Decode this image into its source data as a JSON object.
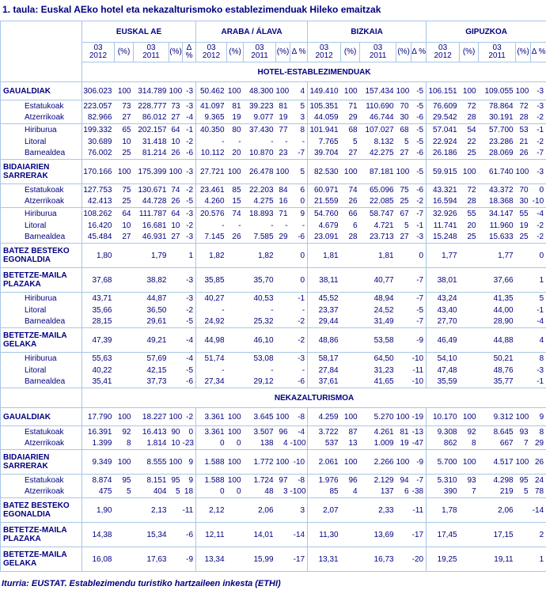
{
  "title": "1. taula: Euskal AEko hotel eta nekazalturismoko establezimenduak Hileko emaitzak",
  "footer": "Iturria: EUSTAT. Establezimendu turistiko hartzaileen inkesta (ETHI)",
  "colors": {
    "text_navy": "#000080",
    "border_blue": "#a8c6e6",
    "background": "#ffffff"
  },
  "table": {
    "groups": [
      "EUSKAL AE",
      "ARABA / ÁLAVA",
      "BIZKAIA",
      "GIPUZKOA"
    ],
    "subheaders": [
      "03\n2012",
      "(%)",
      "03\n2011",
      "(%)",
      "Δ %"
    ],
    "sections": [
      {
        "name": "HOTEL-ESTABLEZIMENDUAK",
        "rows": [
          {
            "label": "GAUALDIAK",
            "type": "head",
            "tall": false,
            "end": true,
            "cells": [
              "306.023",
              "100",
              "314.789",
              "100",
              "-3",
              "50.462",
              "100",
              "48.300",
              "100",
              "4",
              "149.410",
              "100",
              "157.434",
              "100",
              "-5",
              "106.151",
              "100",
              "109.055",
              "100",
              "-3"
            ]
          },
          {
            "label": "Estatukoak",
            "type": "sub",
            "end": false,
            "cells": [
              "223.057",
              "73",
              "228.777",
              "73",
              "-3",
              "41.097",
              "81",
              "39.223",
              "81",
              "5",
              "105.351",
              "71",
              "110.690",
              "70",
              "-5",
              "76.609",
              "72",
              "78.864",
              "72",
              "-3"
            ]
          },
          {
            "label": "Atzerrikoak",
            "type": "sub",
            "end": true,
            "cells": [
              "82.966",
              "27",
              "86.012",
              "27",
              "-4",
              "9.365",
              "19",
              "9.077",
              "19",
              "3",
              "44.059",
              "29",
              "46.744",
              "30",
              "-6",
              "29.542",
              "28",
              "30.191",
              "28",
              "-2"
            ]
          },
          {
            "label": "Hiriburua",
            "type": "sub",
            "end": false,
            "cells": [
              "199.332",
              "65",
              "202.157",
              "64",
              "-1",
              "40.350",
              "80",
              "37.430",
              "77",
              "8",
              "101.941",
              "68",
              "107.027",
              "68",
              "-5",
              "57.041",
              "54",
              "57.700",
              "53",
              "-1"
            ]
          },
          {
            "label": "Litoral",
            "type": "sub",
            "end": false,
            "cells": [
              "30.689",
              "10",
              "31.418",
              "10",
              "-2",
              "-",
              "-",
              "-",
              "-",
              "-",
              "7.765",
              "5",
              "8.132",
              "5",
              "-5",
              "22.924",
              "22",
              "23.286",
              "21",
              "-2"
            ]
          },
          {
            "label": "Barnealdea",
            "type": "sub",
            "end": true,
            "cells": [
              "76.002",
              "25",
              "81.214",
              "26",
              "-6",
              "10.112",
              "20",
              "10.870",
              "23",
              "-7",
              "39.704",
              "27",
              "42.275",
              "27",
              "-6",
              "26.186",
              "25",
              "28.069",
              "26",
              "-7"
            ]
          },
          {
            "label": "BIDAIARIEN SARRERAK",
            "type": "head",
            "tall": true,
            "end": true,
            "cells": [
              "170.166",
              "100",
              "175.399",
              "100",
              "-3",
              "27.721",
              "100",
              "26.478",
              "100",
              "5",
              "82.530",
              "100",
              "87.181",
              "100",
              "-5",
              "59.915",
              "100",
              "61.740",
              "100",
              "-3"
            ]
          },
          {
            "label": "Estatukoak",
            "type": "sub",
            "end": false,
            "cells": [
              "127.753",
              "75",
              "130.671",
              "74",
              "-2",
              "23.461",
              "85",
              "22.203",
              "84",
              "6",
              "60.971",
              "74",
              "65.096",
              "75",
              "-6",
              "43.321",
              "72",
              "43.372",
              "70",
              "0"
            ]
          },
          {
            "label": "Atzerrikoak",
            "type": "sub",
            "end": true,
            "cells": [
              "42.413",
              "25",
              "44.728",
              "26",
              "-5",
              "4.260",
              "15",
              "4.275",
              "16",
              "0",
              "21.559",
              "26",
              "22.085",
              "25",
              "-2",
              "16.594",
              "28",
              "18.368",
              "30",
              "-10"
            ]
          },
          {
            "label": "Hiriburua",
            "type": "sub",
            "end": false,
            "cells": [
              "108.262",
              "64",
              "111.787",
              "64",
              "-3",
              "20.576",
              "74",
              "18.893",
              "71",
              "9",
              "54.760",
              "66",
              "58.747",
              "67",
              "-7",
              "32.926",
              "55",
              "34.147",
              "55",
              "-4"
            ]
          },
          {
            "label": "Litoral",
            "type": "sub",
            "end": false,
            "cells": [
              "16.420",
              "10",
              "16.681",
              "10",
              "-2",
              "-",
              "-",
              "-",
              "-",
              "-",
              "4.679",
              "6",
              "4.721",
              "5",
              "-1",
              "11.741",
              "20",
              "11.960",
              "19",
              "-2"
            ]
          },
          {
            "label": "Barnealdea",
            "type": "sub",
            "end": true,
            "cells": [
              "45.484",
              "27",
              "46.931",
              "27",
              "-3",
              "7.145",
              "26",
              "7.585",
              "29",
              "-6",
              "23.091",
              "28",
              "23.713",
              "27",
              "-3",
              "15.248",
              "25",
              "15.633",
              "25",
              "-2"
            ]
          },
          {
            "label": "BATEZ BESTEKO EGONALDIA",
            "type": "head",
            "tall": true,
            "end": true,
            "cells": [
              "1,80",
              "",
              "1,79",
              "",
              "1",
              "1,82",
              "",
              "1,82",
              "",
              "0",
              "1,81",
              "",
              "1,81",
              "",
              "0",
              "1,77",
              "",
              "1,77",
              "",
              "0"
            ]
          },
          {
            "label": "BETETZE-MAILA PLAZAKA",
            "type": "head",
            "tall": true,
            "end": true,
            "cells": [
              "37,68",
              "",
              "38,82",
              "",
              "-3",
              "35,85",
              "",
              "35,70",
              "",
              "0",
              "38,11",
              "",
              "40,77",
              "",
              "-7",
              "38,01",
              "",
              "37,66",
              "",
              "1"
            ]
          },
          {
            "label": "Hiriburua",
            "type": "sub",
            "end": false,
            "cells": [
              "43,71",
              "",
              "44,87",
              "",
              "-3",
              "40,27",
              "",
              "40,53",
              "",
              "-1",
              "45,52",
              "",
              "48,94",
              "",
              "-7",
              "43,24",
              "",
              "41,35",
              "",
              "5"
            ]
          },
          {
            "label": "Litoral",
            "type": "sub",
            "end": false,
            "cells": [
              "35,66",
              "",
              "36,50",
              "",
              "-2",
              "-",
              "",
              "-",
              "",
              "-",
              "23,37",
              "",
              "24,52",
              "",
              "-5",
              "43,40",
              "",
              "44,00",
              "",
              "-1"
            ]
          },
          {
            "label": "Barnealdea",
            "type": "sub",
            "end": true,
            "cells": [
              "28,15",
              "",
              "29,61",
              "",
              "-5",
              "24,92",
              "",
              "25,32",
              "",
              "-2",
              "29,44",
              "",
              "31,49",
              "",
              "-7",
              "27,70",
              "",
              "28,90",
              "",
              "-4"
            ]
          },
          {
            "label": "BETETZE-MAILA GELAKA",
            "type": "head",
            "tall": true,
            "end": true,
            "cells": [
              "47,39",
              "",
              "49,21",
              "",
              "-4",
              "44,98",
              "",
              "46,10",
              "",
              "-2",
              "48,86",
              "",
              "53,58",
              "",
              "-9",
              "46,49",
              "",
              "44,88",
              "",
              "4"
            ]
          },
          {
            "label": "Hiriburua",
            "type": "sub",
            "end": false,
            "cells": [
              "55,63",
              "",
              "57,69",
              "",
              "-4",
              "51,74",
              "",
              "53,08",
              "",
              "-3",
              "58,17",
              "",
              "64,50",
              "",
              "-10",
              "54,10",
              "",
              "50,21",
              "",
              "8"
            ]
          },
          {
            "label": "Litoral",
            "type": "sub",
            "end": false,
            "cells": [
              "40,22",
              "",
              "42,15",
              "",
              "-5",
              "-",
              "",
              "-",
              "",
              "-",
              "27,84",
              "",
              "31,23",
              "",
              "-11",
              "47,48",
              "",
              "48,76",
              "",
              "-3"
            ]
          },
          {
            "label": "Barnealdea",
            "type": "sub",
            "end": true,
            "cells": [
              "35,41",
              "",
              "37,73",
              "",
              "-6",
              "27,34",
              "",
              "29,12",
              "",
              "-6",
              "37,61",
              "",
              "41,65",
              "",
              "-10",
              "35,59",
              "",
              "35,77",
              "",
              "-1"
            ]
          }
        ]
      },
      {
        "name": "NEKAZALTURISMOA",
        "rows": [
          {
            "label": "GAUALDIAK",
            "type": "head",
            "tall": false,
            "end": true,
            "cells": [
              "17.790",
              "100",
              "18.227",
              "100",
              "-2",
              "3.361",
              "100",
              "3.645",
              "100",
              "-8",
              "4.259",
              "100",
              "5.270",
              "100",
              "-19",
              "10.170",
              "100",
              "9.312",
              "100",
              "9"
            ]
          },
          {
            "label": "Estatukoak",
            "type": "sub",
            "end": false,
            "cells": [
              "16.391",
              "92",
              "16.413",
              "90",
              "0",
              "3.361",
              "100",
              "3.507",
              "96",
              "-4",
              "3.722",
              "87",
              "4.261",
              "81",
              "-13",
              "9.308",
              "92",
              "8.645",
              "93",
              "8"
            ]
          },
          {
            "label": "Atzerrikoak",
            "type": "sub",
            "end": true,
            "cells": [
              "1.399",
              "8",
              "1.814",
              "10",
              "-23",
              "0",
              "0",
              "138",
              "4",
              "-100",
              "537",
              "13",
              "1.009",
              "19",
              "-47",
              "862",
              "8",
              "667",
              "7",
              "29"
            ]
          },
          {
            "label": "BIDAIARIEN SARRERAK",
            "type": "head",
            "tall": true,
            "end": true,
            "cells": [
              "9.349",
              "100",
              "8.555",
              "100",
              "9",
              "1.588",
              "100",
              "1.772",
              "100",
              "-10",
              "2.061",
              "100",
              "2.266",
              "100",
              "-9",
              "5.700",
              "100",
              "4.517",
              "100",
              "26"
            ]
          },
          {
            "label": "Estatukoak",
            "type": "sub",
            "end": false,
            "cells": [
              "8.874",
              "95",
              "8.151",
              "95",
              "9",
              "1.588",
              "100",
              "1.724",
              "97",
              "-8",
              "1.976",
              "96",
              "2.129",
              "94",
              "-7",
              "5.310",
              "93",
              "4.298",
              "95",
              "24"
            ]
          },
          {
            "label": "Atzerrikoak",
            "type": "sub",
            "end": true,
            "cells": [
              "475",
              "5",
              "404",
              "5",
              "18",
              "0",
              "0",
              "48",
              "3",
              "-100",
              "85",
              "4",
              "137",
              "6",
              "-38",
              "390",
              "7",
              "219",
              "5",
              "78"
            ]
          },
          {
            "label": "BATEZ BESTEKO EGONALDIA",
            "type": "head",
            "tall": true,
            "end": true,
            "cells": [
              "1,90",
              "",
              "2,13",
              "",
              "-11",
              "2,12",
              "",
              "2,06",
              "",
              "3",
              "2,07",
              "",
              "2,33",
              "",
              "-11",
              "1,78",
              "",
              "2,06",
              "",
              "-14"
            ]
          },
          {
            "label": "BETETZE-MAILA PLAZAKA",
            "type": "head",
            "tall": true,
            "end": true,
            "cells": [
              "14,38",
              "",
              "15,34",
              "",
              "-6",
              "12,11",
              "",
              "14,01",
              "",
              "-14",
              "11,30",
              "",
              "13,69",
              "",
              "-17",
              "17,45",
              "",
              "17,15",
              "",
              "2"
            ]
          },
          {
            "label": "BETETZE-MAILA GELAKA",
            "type": "head",
            "tall": true,
            "end": true,
            "cells": [
              "16,08",
              "",
              "17,63",
              "",
              "-9",
              "13,34",
              "",
              "15,99",
              "",
              "-17",
              "13,31",
              "",
              "16,73",
              "",
              "-20",
              "19,25",
              "",
              "19,11",
              "",
              "1"
            ]
          }
        ]
      }
    ]
  }
}
